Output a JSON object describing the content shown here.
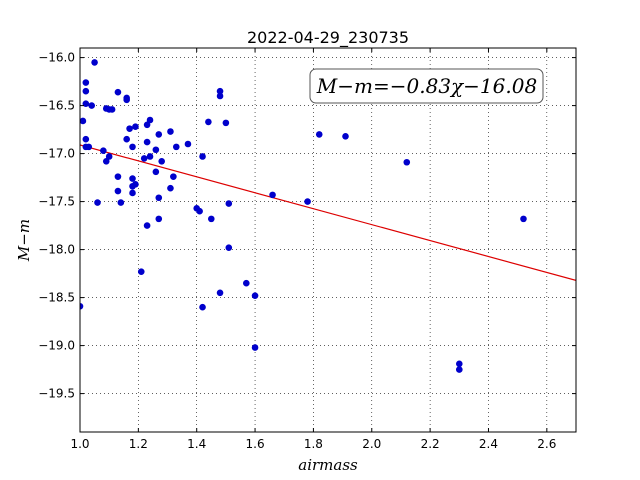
{
  "chart_data": {
    "type": "scatter",
    "title": "2022-04-29_230735",
    "xlabel": "airmass",
    "ylabel": "M−m",
    "xlim": [
      1.0,
      2.7
    ],
    "ylim": [
      -15.9,
      -19.9
    ],
    "y_inverted": true,
    "xticks": [
      1.0,
      1.2,
      1.4,
      1.6,
      1.8,
      2.0,
      2.2,
      2.4,
      2.6
    ],
    "xtick_labels": [
      "1.0",
      "1.2",
      "1.4",
      "1.6",
      "1.8",
      "2.0",
      "2.2",
      "2.4",
      "2.6"
    ],
    "yticks": [
      -16.0,
      -16.5,
      -17.0,
      -17.5,
      -18.0,
      -18.5,
      -19.0,
      -19.5
    ],
    "ytick_labels": [
      "−16.0",
      "−16.5",
      "−17.0",
      "−17.5",
      "−18.0",
      "−18.5",
      "−19.0",
      "−19.5"
    ],
    "grid": true,
    "annotation": "M−m=−0.83χ−16.08",
    "annotation_position": "top-right",
    "fit_line": {
      "slope": -0.83,
      "intercept": -16.08,
      "color": "#dd0000"
    },
    "point_color": "#0000cc",
    "points": [
      [
        1.0,
        -18.59
      ],
      [
        1.01,
        -16.66
      ],
      [
        1.02,
        -16.26
      ],
      [
        1.02,
        -16.35
      ],
      [
        1.02,
        -16.48
      ],
      [
        1.02,
        -16.85
      ],
      [
        1.02,
        -16.93
      ],
      [
        1.03,
        -16.93
      ],
      [
        1.04,
        -16.5
      ],
      [
        1.05,
        -16.05
      ],
      [
        1.06,
        -17.51
      ],
      [
        1.08,
        -16.97
      ],
      [
        1.09,
        -16.53
      ],
      [
        1.09,
        -17.08
      ],
      [
        1.1,
        -16.54
      ],
      [
        1.1,
        -17.03
      ],
      [
        1.11,
        -16.54
      ],
      [
        1.13,
        -16.36
      ],
      [
        1.13,
        -17.24
      ],
      [
        1.13,
        -17.39
      ],
      [
        1.14,
        -17.51
      ],
      [
        1.16,
        -16.42
      ],
      [
        1.16,
        -16.44
      ],
      [
        1.16,
        -16.85
      ],
      [
        1.17,
        -16.74
      ],
      [
        1.18,
        -16.93
      ],
      [
        1.18,
        -17.26
      ],
      [
        1.18,
        -17.34
      ],
      [
        1.18,
        -17.41
      ],
      [
        1.19,
        -16.72
      ],
      [
        1.19,
        -17.32
      ],
      [
        1.21,
        -18.23
      ],
      [
        1.22,
        -17.05
      ],
      [
        1.23,
        -16.7
      ],
      [
        1.23,
        -16.88
      ],
      [
        1.23,
        -17.75
      ],
      [
        1.24,
        -16.65
      ],
      [
        1.24,
        -17.03
      ],
      [
        1.26,
        -16.96
      ],
      [
        1.26,
        -17.19
      ],
      [
        1.27,
        -16.8
      ],
      [
        1.27,
        -17.46
      ],
      [
        1.27,
        -17.68
      ],
      [
        1.28,
        -17.08
      ],
      [
        1.31,
        -16.77
      ],
      [
        1.31,
        -17.36
      ],
      [
        1.32,
        -17.24
      ],
      [
        1.33,
        -16.93
      ],
      [
        1.37,
        -16.9
      ],
      [
        1.4,
        -17.57
      ],
      [
        1.41,
        -17.6
      ],
      [
        1.42,
        -18.6
      ],
      [
        1.42,
        -17.03
      ],
      [
        1.44,
        -16.67
      ],
      [
        1.45,
        -17.68
      ],
      [
        1.48,
        -16.35
      ],
      [
        1.48,
        -16.4
      ],
      [
        1.48,
        -18.45
      ],
      [
        1.5,
        -16.68
      ],
      [
        1.51,
        -17.52
      ],
      [
        1.51,
        -17.98
      ],
      [
        1.57,
        -18.35
      ],
      [
        1.6,
        -18.48
      ],
      [
        1.6,
        -19.02
      ],
      [
        1.66,
        -17.43
      ],
      [
        1.78,
        -17.5
      ],
      [
        1.82,
        -16.8
      ],
      [
        1.91,
        -16.82
      ],
      [
        2.12,
        -17.09
      ],
      [
        2.3,
        -19.19
      ],
      [
        2.3,
        -19.25
      ],
      [
        2.52,
        -17.68
      ]
    ]
  }
}
